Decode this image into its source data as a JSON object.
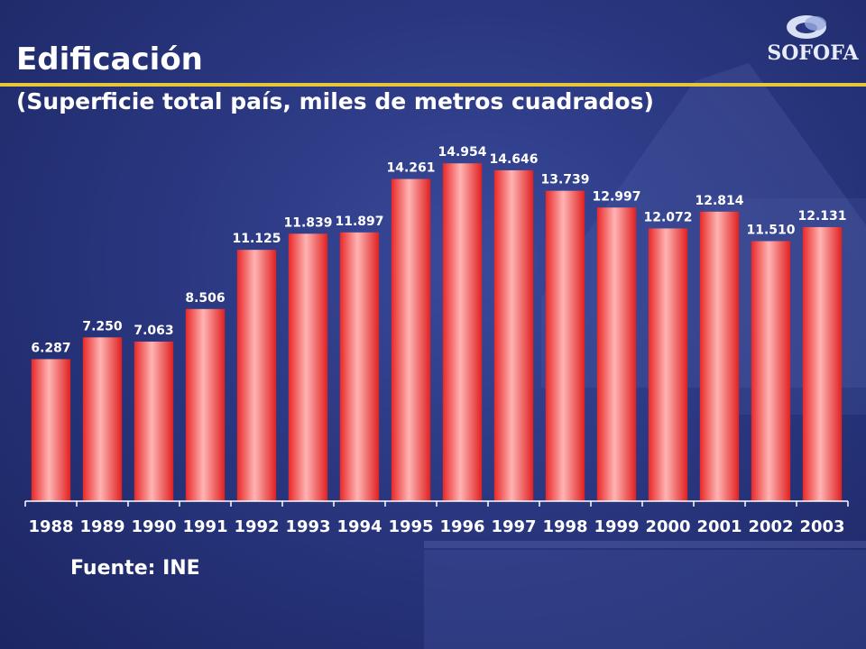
{
  "header": {
    "title": "Edificación",
    "subtitle": "(Superficie total país, miles de metros cuadrados)",
    "logo_text": "SOFOFA"
  },
  "footer": {
    "source": "Fuente: INE"
  },
  "colors": {
    "bar": "#ff5a5a",
    "bar_light": "#ffb0b0",
    "bar_dark": "#d81c1c",
    "accent_line": "#e8c63a",
    "background": "#2a3780",
    "text": "#ffffff"
  },
  "chart_data": {
    "type": "bar",
    "title": "",
    "xlabel": "",
    "ylabel": "",
    "categories": [
      "1988",
      "1989",
      "1990",
      "1991",
      "1992",
      "1993",
      "1994",
      "1995",
      "1996",
      "1997",
      "1998",
      "1999",
      "2000",
      "2001",
      "2002",
      "2003"
    ],
    "values": [
      6287,
      7250,
      7063,
      8506,
      11125,
      11839,
      11897,
      14261,
      14954,
      14646,
      13739,
      12997,
      12072,
      12814,
      11510,
      12131
    ],
    "value_labels": [
      "6.287",
      "7.250",
      "7.063",
      "8.506",
      "11.125",
      "11.839",
      "11.897",
      "14.261",
      "14.954",
      "14.646",
      "13.739",
      "12.997",
      "12.072",
      "12.814",
      "11.510",
      "12.131"
    ],
    "ylim": [
      0,
      15800
    ],
    "grid": false,
    "legend": "none"
  }
}
